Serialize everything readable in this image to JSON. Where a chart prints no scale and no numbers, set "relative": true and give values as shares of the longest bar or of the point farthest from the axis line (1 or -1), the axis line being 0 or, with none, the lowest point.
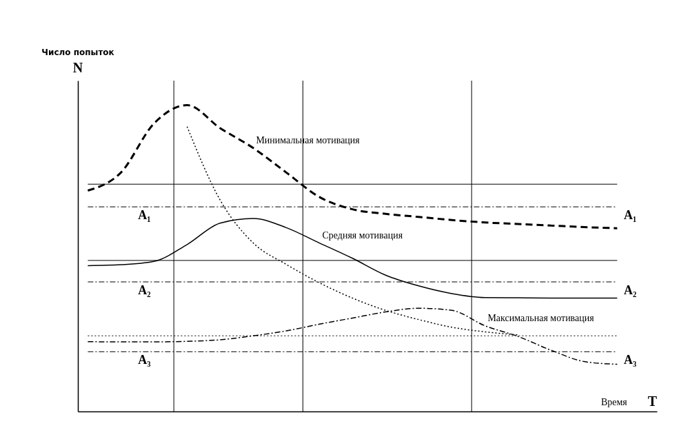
{
  "chart_data": {
    "type": "line",
    "relative": true,
    "xlabel": "Время",
    "annotations": [
      "Число попыток",
      "N",
      "T"
    ],
    "categories": [
      null,
      null,
      null,
      null,
      null,
      null,
      null,
      null,
      null,
      null,
      null,
      null,
      null,
      null,
      null,
      null,
      null
    ],
    "series": [
      {
        "name": "Минимальная мотивация",
        "color": "#000000",
        "line_style": "dashed",
        "values": [
          0.721,
          0.78,
          0.94,
          1.0,
          0.925,
          0.86,
          0.78,
          0.7,
          0.66,
          0.645,
          0.635,
          0.625,
          0.617,
          0.612,
          0.607,
          0.602,
          0.598
        ]
      },
      {
        "name": "Средняя мотивация",
        "color": "#000000",
        "line_style": "solid",
        "values": [
          0.476,
          0.479,
          0.49,
          0.545,
          0.615,
          0.63,
          0.6,
          0.55,
          0.5,
          0.445,
          0.41,
          0.385,
          0.372,
          0.371,
          0.37,
          0.37,
          0.37
        ]
      },
      {
        "name": "Максимальная мотивация",
        "color": "#000000",
        "line_style": "dashdot",
        "values": [
          0.228,
          0.227,
          0.227,
          0.229,
          0.234,
          0.247,
          0.263,
          0.285,
          0.305,
          0.325,
          0.337,
          0.33,
          0.28,
          0.245,
          0.2,
          0.163,
          0.154
        ]
      },
      {
        "color": "#000000",
        "line_style": "dotted",
        "values": [
          null,
          null,
          null,
          0.93,
          0.69,
          0.55,
          0.48,
          0.42,
          0.37,
          0.33,
          0.3,
          0.275,
          0.26,
          0.25,
          null,
          null,
          null
        ]
      }
    ],
    "ref_lines": [
      {
        "axis": "y",
        "value": 0.742,
        "line_style": "solid"
      },
      {
        "axis": "y",
        "value": 0.668,
        "label": "A₁",
        "line_style": "dashdot"
      },
      {
        "axis": "y",
        "value": 0.493,
        "line_style": "solid"
      },
      {
        "axis": "y",
        "value": 0.423,
        "label": "A₂",
        "line_style": "dashdot"
      },
      {
        "axis": "y",
        "value": 0.247,
        "line_style": "dotted"
      },
      {
        "axis": "y",
        "value": 0.195,
        "label": "A₃",
        "line_style": "dashdot"
      }
    ],
    "grid": false,
    "legend": false,
    "marker": "none"
  }
}
